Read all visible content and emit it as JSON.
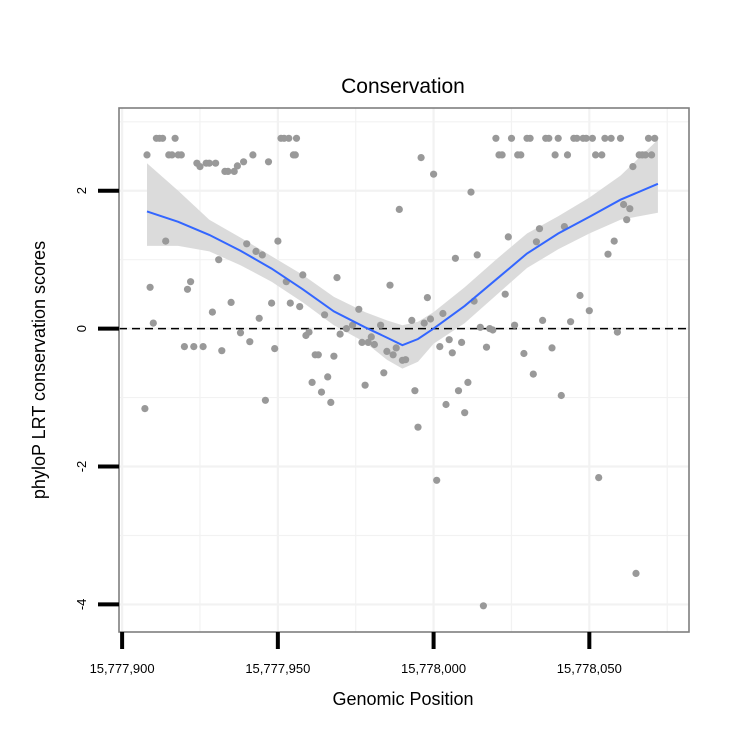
{
  "chart_data": {
    "type": "scatter",
    "title": "Conservation",
    "xlabel": "Genomic Position",
    "ylabel": "phyloP LRT conservation scores",
    "xlim": [
      15777899,
      15778082
    ],
    "ylim": [
      -4.4,
      3.2
    ],
    "x_ticks": [
      15777900,
      15777950,
      15778000,
      15778050
    ],
    "x_tick_labels": [
      "15,777,900",
      "15,777,950",
      "15,778,000",
      "15,778,050"
    ],
    "y_ticks": [
      -4,
      -2,
      0,
      2
    ],
    "y_tick_labels": [
      "-4",
      "-2",
      "0",
      "2"
    ],
    "grid": true,
    "reference_line": {
      "y": 0,
      "style": "dashed",
      "color": "#000000"
    },
    "colors": {
      "points": "#999999",
      "smooth": "#3366ff",
      "ribbon": "#d9d9d9",
      "panel_border": "#7f7f7f",
      "grid": "#f2f2f2"
    },
    "series": [
      {
        "name": "phyloP scores",
        "type": "scatter",
        "points": [
          [
            15777907.3,
            -1.16
          ],
          [
            15777908,
            2.52
          ],
          [
            15777909,
            0.6
          ],
          [
            15777910,
            0.08
          ],
          [
            15777911,
            2.76
          ],
          [
            15777912,
            2.76
          ],
          [
            15777913,
            2.76
          ],
          [
            15777914,
            1.27
          ],
          [
            15777915,
            2.52
          ],
          [
            15777916,
            2.52
          ],
          [
            15777917,
            2.76
          ],
          [
            15777918,
            2.52
          ],
          [
            15777919,
            2.52
          ],
          [
            15777920,
            -0.26
          ],
          [
            15777921,
            0.57
          ],
          [
            15777922,
            0.68
          ],
          [
            15777923,
            -0.26
          ],
          [
            15777924,
            2.4
          ],
          [
            15777925,
            2.35
          ],
          [
            15777926,
            -0.26
          ],
          [
            15777927,
            2.4
          ],
          [
            15777928,
            2.4
          ],
          [
            15777929,
            0.24
          ],
          [
            15777930,
            2.4
          ],
          [
            15777931,
            1.0
          ],
          [
            15777932,
            -0.32
          ],
          [
            15777933,
            2.28
          ],
          [
            15777934,
            2.28
          ],
          [
            15777935,
            0.38
          ],
          [
            15777936,
            2.28
          ],
          [
            15777937,
            2.36
          ],
          [
            15777938,
            -0.06
          ],
          [
            15777939,
            2.42
          ],
          [
            15777940,
            1.23
          ],
          [
            15777941,
            -0.19
          ],
          [
            15777942,
            2.52
          ],
          [
            15777943,
            1.12
          ],
          [
            15777944,
            0.15
          ],
          [
            15777945,
            1.07
          ],
          [
            15777946,
            -1.04
          ],
          [
            15777947,
            2.42
          ],
          [
            15777948,
            0.37
          ],
          [
            15777949,
            -0.29
          ],
          [
            15777950,
            1.27
          ],
          [
            15777951,
            2.76
          ],
          [
            15777952,
            2.76
          ],
          [
            15777952.7,
            0.68
          ],
          [
            15777953.5,
            2.76
          ],
          [
            15777954,
            0.37
          ],
          [
            15777955,
            2.52
          ],
          [
            15777955.6,
            2.52
          ],
          [
            15777956,
            2.76
          ],
          [
            15777957,
            0.32
          ],
          [
            15777958,
            0.78
          ],
          [
            15777959,
            -0.1
          ],
          [
            15777960,
            -0.05
          ],
          [
            15777961,
            -0.78
          ],
          [
            15777962,
            -0.38
          ],
          [
            15777963,
            -0.38
          ],
          [
            15777964,
            -0.92
          ],
          [
            15777965,
            0.2
          ],
          [
            15777966,
            -0.7
          ],
          [
            15777967,
            -1.07
          ],
          [
            15777968,
            -0.4
          ],
          [
            15777969,
            0.74
          ],
          [
            15777970,
            -0.08
          ],
          [
            15777972,
            0.0
          ],
          [
            15777974,
            0.05
          ],
          [
            15777976,
            0.28
          ],
          [
            15777977,
            -0.2
          ],
          [
            15777978,
            -0.82
          ],
          [
            15777979,
            -0.2
          ],
          [
            15777980,
            -0.12
          ],
          [
            15777981,
            -0.23
          ],
          [
            15777983,
            0.05
          ],
          [
            15777984,
            -0.64
          ],
          [
            15777985,
            -0.33
          ],
          [
            15777986,
            0.63
          ],
          [
            15777987,
            -0.38
          ],
          [
            15777988,
            -0.28
          ],
          [
            15777989,
            1.73
          ],
          [
            15777990,
            -0.46
          ],
          [
            15777991,
            -0.45
          ],
          [
            15777993,
            0.12
          ],
          [
            15777994,
            -0.9
          ],
          [
            15777995,
            -1.43
          ],
          [
            15777996,
            2.48
          ],
          [
            15777997,
            0.08
          ],
          [
            15777998,
            0.45
          ],
          [
            15777999,
            0.14
          ],
          [
            15778000,
            2.24
          ],
          [
            15778001,
            -2.2
          ],
          [
            15778002,
            -0.26
          ],
          [
            15778003,
            0.22
          ],
          [
            15778004,
            -1.1
          ],
          [
            15778005,
            -0.16
          ],
          [
            15778006,
            -0.35
          ],
          [
            15778007,
            1.02
          ],
          [
            15778008,
            -0.9
          ],
          [
            15778009,
            -0.2
          ],
          [
            15778010,
            -1.22
          ],
          [
            15778011,
            -0.78
          ],
          [
            15778012,
            1.98
          ],
          [
            15778013,
            0.4
          ],
          [
            15778014,
            1.07
          ],
          [
            15778015,
            0.02
          ],
          [
            15778016,
            -4.02
          ],
          [
            15778017,
            -0.27
          ],
          [
            15778018,
            0.0
          ],
          [
            15778019,
            -0.02
          ],
          [
            15778020,
            2.76
          ],
          [
            15778021,
            2.52
          ],
          [
            15778022,
            2.52
          ],
          [
            15778023,
            0.5
          ],
          [
            15778024,
            1.33
          ],
          [
            15778025,
            2.76
          ],
          [
            15778026,
            0.05
          ],
          [
            15778027,
            2.52
          ],
          [
            15778028,
            2.52
          ],
          [
            15778029,
            -0.36
          ],
          [
            15778030,
            2.76
          ],
          [
            15778031,
            2.76
          ],
          [
            15778032,
            -0.66
          ],
          [
            15778033,
            1.26
          ],
          [
            15778034,
            1.45
          ],
          [
            15778035,
            0.12
          ],
          [
            15778036,
            2.76
          ],
          [
            15778037,
            2.76
          ],
          [
            15778038,
            -0.28
          ],
          [
            15778039,
            2.52
          ],
          [
            15778040,
            2.76
          ],
          [
            15778041,
            -0.97
          ],
          [
            15778042,
            1.48
          ],
          [
            15778043,
            2.52
          ],
          [
            15778044,
            0.1
          ],
          [
            15778045,
            2.76
          ],
          [
            15778046,
            2.76
          ],
          [
            15778047,
            0.48
          ],
          [
            15778048,
            2.76
          ],
          [
            15778049,
            2.76
          ],
          [
            15778050,
            0.26
          ],
          [
            15778051,
            2.76
          ],
          [
            15778052,
            2.52
          ],
          [
            15778053,
            -2.16
          ],
          [
            15778054,
            2.52
          ],
          [
            15778055,
            2.76
          ],
          [
            15778056,
            1.08
          ],
          [
            15778057,
            2.76
          ],
          [
            15778058,
            1.27
          ],
          [
            15778059,
            -0.05
          ],
          [
            15778060,
            2.76
          ],
          [
            15778061,
            1.8
          ],
          [
            15778062,
            1.58
          ],
          [
            15778063,
            1.74
          ],
          [
            15778064,
            2.35
          ],
          [
            15778065,
            -3.55
          ],
          [
            15778066,
            2.52
          ],
          [
            15778067,
            2.52
          ],
          [
            15778068,
            2.52
          ],
          [
            15778069,
            2.76
          ],
          [
            15778070,
            2.52
          ],
          [
            15778071,
            2.76
          ]
        ]
      },
      {
        "name": "loess smooth",
        "type": "line",
        "x": [
          15777908,
          15777918,
          15777928,
          15777938,
          15777948,
          15777958,
          15777968,
          15777978,
          15777985,
          15777990,
          15777995,
          15778000,
          15778010,
          15778020,
          15778030,
          15778040,
          15778050,
          15778060,
          15778072
        ],
        "y": [
          1.7,
          1.55,
          1.36,
          1.13,
          0.87,
          0.57,
          0.25,
          0.02,
          -0.13,
          -0.24,
          -0.15,
          0.0,
          0.33,
          0.71,
          1.09,
          1.38,
          1.62,
          1.87,
          2.1
        ],
        "lower": [
          1.2,
          1.2,
          1.12,
          0.92,
          0.68,
          0.38,
          0.05,
          -0.2,
          -0.45,
          -0.58,
          -0.48,
          -0.22,
          0.08,
          0.48,
          0.88,
          1.15,
          1.38,
          1.58,
          1.68
        ],
        "upper": [
          2.4,
          2.0,
          1.58,
          1.32,
          1.05,
          0.78,
          0.46,
          0.24,
          0.12,
          0.05,
          0.1,
          0.24,
          0.6,
          1.0,
          1.38,
          1.63,
          1.9,
          2.22,
          2.74
        ]
      }
    ]
  }
}
